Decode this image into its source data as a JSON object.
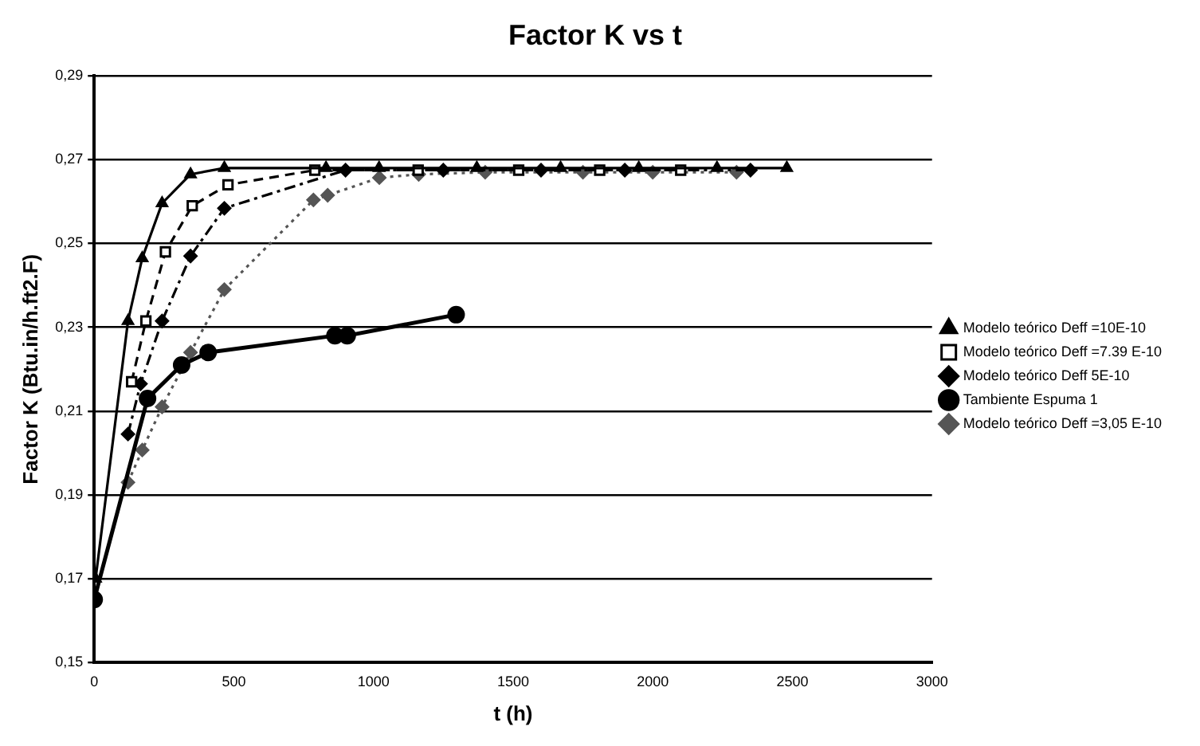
{
  "chart_data": {
    "type": "line",
    "title": "Factor K vs t",
    "xlabel": "t (h)",
    "ylabel": "Factor K (Btu.in/h.ft2.F)",
    "xlim": [
      0,
      3000
    ],
    "xticks": [
      0,
      500,
      1000,
      1500,
      2000,
      2500,
      3000
    ],
    "ylim": [
      0.15,
      0.29
    ],
    "yticks": [
      {
        "value": 0.15,
        "label": "0,15"
      },
      {
        "value": 0.17,
        "label": "0,17"
      },
      {
        "value": 0.19,
        "label": "0,19"
      },
      {
        "value": 0.21,
        "label": "0,21"
      },
      {
        "value": 0.23,
        "label": "0,23"
      },
      {
        "value": 0.25,
        "label": "0,25"
      },
      {
        "value": 0.27,
        "label": "0,27"
      },
      {
        "value": 0.29,
        "label": "0,29"
      }
    ],
    "grid": "y",
    "legend": "right",
    "series": [
      {
        "name": "Modelo teórico Deff =10E-10",
        "color": "#000000",
        "marker": "triangle",
        "line_style": "solid",
        "x": [
          5,
          121,
          172,
          243,
          345,
          466,
          830,
          1020,
          1370,
          1670,
          1950,
          2230,
          2480
        ],
        "values": [
          0.17,
          0.2315,
          0.2465,
          0.2596,
          0.2665,
          0.268,
          0.268,
          0.268,
          0.268,
          0.268,
          0.268,
          0.268,
          0.268
        ]
      },
      {
        "name": "Modelo teórico Deff =7.39 E-10",
        "color": "#000000",
        "marker": "square",
        "line_style": "dashed",
        "x": [
          134,
          185,
          255,
          351,
          479,
          790,
          1160,
          1520,
          1810,
          2100
        ],
        "values": [
          0.217,
          0.2315,
          0.248,
          0.259,
          0.264,
          0.2675,
          0.2675,
          0.2675,
          0.2675,
          0.2675
        ]
      },
      {
        "name": "Modelo teórico Deff 5E-10",
        "color": "#000000",
        "marker": "diamond",
        "line_style": "dashdot",
        "x": [
          121,
          166,
          243,
          345,
          466,
          900,
          1250,
          1600,
          1900,
          2350
        ],
        "values": [
          0.2045,
          0.2165,
          0.2315,
          0.247,
          0.2584,
          0.2675,
          0.2675,
          0.2675,
          0.2675,
          0.2675
        ]
      },
      {
        "name": "Tambiente Espuma 1",
        "color": "#000000",
        "marker": "circle",
        "line_style": "solid",
        "x": [
          0,
          191,
          313,
          408,
          862,
          906,
          1296
        ],
        "values": [
          0.165,
          0.213,
          0.221,
          0.224,
          0.228,
          0.228,
          0.233
        ]
      },
      {
        "name": "Modelo teórico Deff =3,05 E-10",
        "color": "#555555",
        "marker": "diamond",
        "line_style": "dotted",
        "x": [
          121,
          172,
          243,
          345,
          466,
          785,
          836,
          1021,
          1162,
          1400,
          1750,
          2000,
          2300
        ],
        "values": [
          0.193,
          0.2007,
          0.211,
          0.224,
          0.239,
          0.2604,
          0.2615,
          0.2657,
          0.2665,
          0.267,
          0.267,
          0.267,
          0.267
        ]
      }
    ]
  }
}
